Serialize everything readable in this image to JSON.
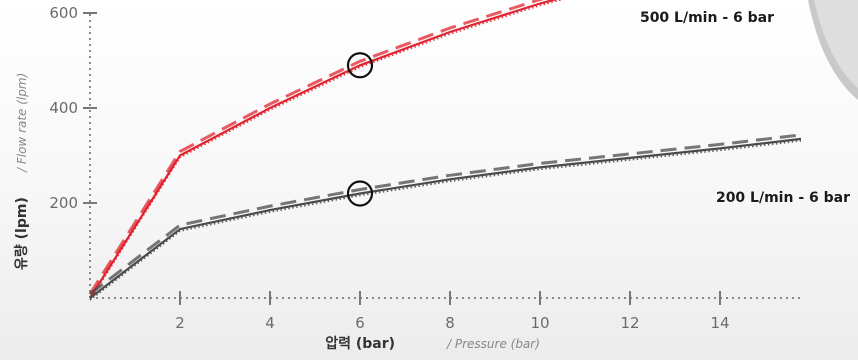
{
  "chart_data": {
    "type": "line",
    "xlabel": "압력 (bar)",
    "xlabel_sub": "/ Pressure (bar)",
    "ylabel": "유량 (lpm)",
    "ylabel_sub": "/ Flow rate (lpm)",
    "xlim": [
      0,
      16
    ],
    "ylim": [
      0,
      650
    ],
    "x_ticks": [
      2,
      4,
      6,
      8,
      10,
      12,
      14
    ],
    "y_ticks": [
      200,
      400,
      600
    ],
    "series": [
      {
        "name": "500 L/min - 6 bar",
        "color": "#e0242f",
        "x": [
          0,
          2,
          4,
          6,
          8,
          10,
          11.4
        ],
        "y": [
          0,
          300,
          400,
          490,
          560,
          620,
          655
        ],
        "marker_x": 6,
        "marker_y": 490
      },
      {
        "name": "200 L/min - 6 bar",
        "color": "#4a4a4a",
        "x": [
          0,
          2,
          4,
          6,
          8,
          10,
          12,
          14,
          15.8
        ],
        "y": [
          0,
          145,
          185,
          220,
          250,
          275,
          295,
          315,
          335
        ],
        "marker_x": 6,
        "marker_y": 220
      }
    ],
    "grid": false,
    "legend": "inline-right"
  }
}
